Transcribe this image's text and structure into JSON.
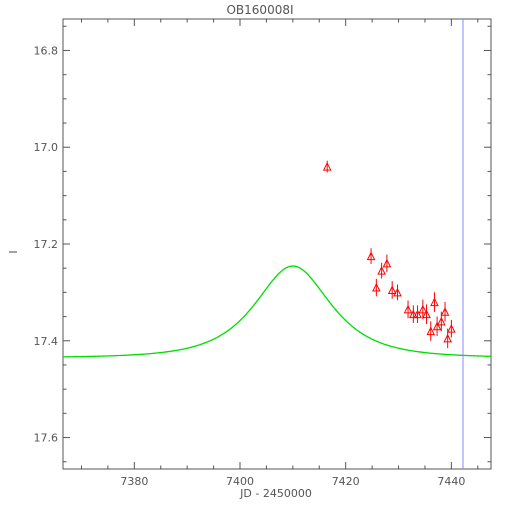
{
  "chart_data": {
    "type": "scatter",
    "title": "OB160008I",
    "xlabel": "JD - 2450000",
    "ylabel": "I",
    "xlim": [
      7366.5,
      7447.5
    ],
    "ylim": [
      17.665,
      16.735
    ],
    "y_inverted": true,
    "x_ticks": [
      7380,
      7400,
      7420,
      7440
    ],
    "x_tick_labels": [
      "7380",
      "7400",
      "7420",
      "7440"
    ],
    "y_ticks": [
      16.8,
      17.0,
      17.2,
      17.4,
      17.6
    ],
    "y_tick_labels": [
      "16.8",
      "17.0",
      "17.2",
      "17.4",
      "17.6"
    ],
    "grid": false,
    "legend": "none",
    "model_curve": {
      "color": "#00dd00",
      "t0": 7410.0,
      "u0": 0.9,
      "tE": 9.5,
      "baseline_mag": 17.435,
      "blend_fs": 0.45
    },
    "series": [
      {
        "marker": "open-triangle",
        "color": "#ff0000",
        "x": [
          7416.5,
          7424.8,
          7425.8,
          7426.8,
          7427.8,
          7428.8,
          7429.8,
          7431.8,
          7432.8,
          7433.6,
          7434.6,
          7435.3,
          7436.1,
          7436.8,
          7437.3,
          7438.1,
          7438.8,
          7439.3,
          7440.0
        ],
        "y": [
          17.04,
          17.225,
          17.29,
          17.255,
          17.24,
          17.295,
          17.3,
          17.335,
          17.345,
          17.345,
          17.335,
          17.345,
          17.38,
          17.32,
          17.37,
          17.36,
          17.34,
          17.395,
          17.375
        ],
        "yerr": [
          0.006,
          0.01,
          0.012,
          0.01,
          0.012,
          0.012,
          0.01,
          0.012,
          0.012,
          0.012,
          0.014,
          0.014,
          0.014,
          0.014,
          0.014,
          0.014,
          0.014,
          0.014,
          0.012
        ]
      }
    ],
    "vertical_line": {
      "x": 7442.2,
      "color": "#8888ff"
    }
  }
}
